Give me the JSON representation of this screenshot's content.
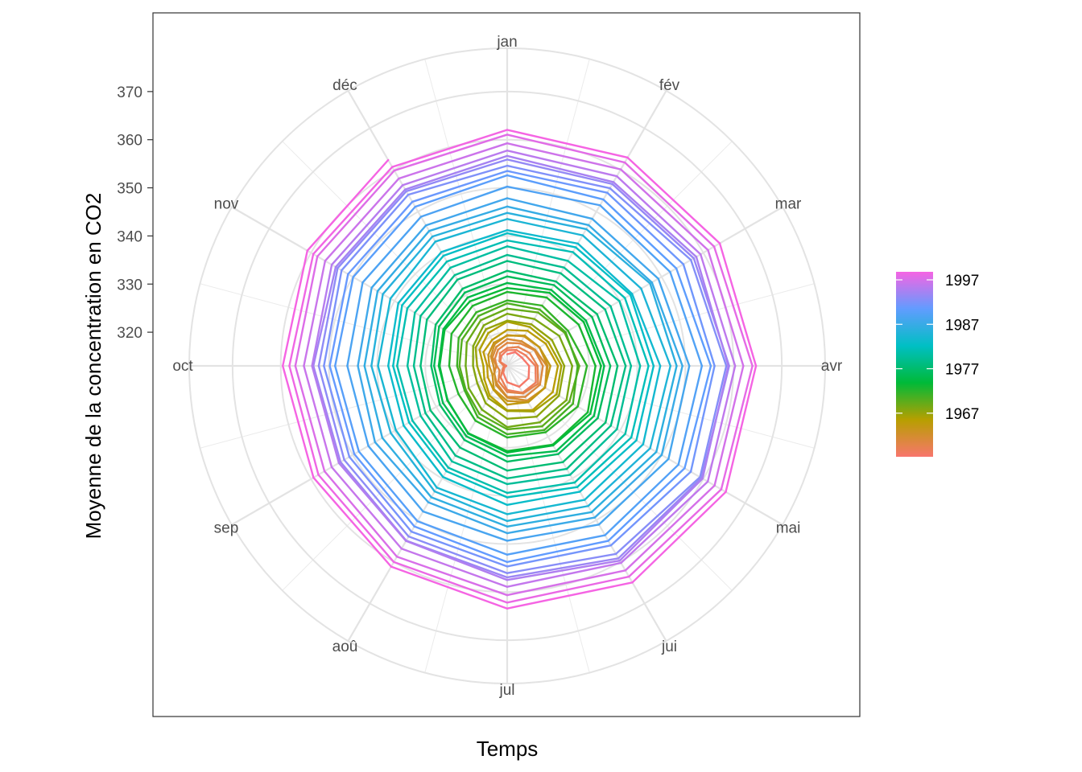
{
  "chart_data": {
    "type": "line",
    "coord": "polar",
    "xlabel": "Temps",
    "ylabel": "Moyenne de la concentration en CO2",
    "x": [
      "jan",
      "fév",
      "mar",
      "avr",
      "mai",
      "jui",
      "jul",
      "aoû",
      "sep",
      "oct",
      "nov",
      "déc"
    ],
    "y_ticks": [
      320,
      330,
      340,
      350,
      360,
      370
    ],
    "ylim": [
      313,
      379
    ],
    "grid": true,
    "series": [
      {
        "year": 1959,
        "values": [
          315.42,
          316.31,
          316.5,
          317.56,
          318.13,
          318.0,
          316.39,
          314.65,
          313.68,
          313.18,
          314.66,
          315.43
        ]
      },
      {
        "year": 1960,
        "values": [
          316.27,
          316.81,
          317.42,
          318.87,
          319.87,
          319.43,
          318.01,
          315.74,
          314.0,
          313.68,
          314.84,
          316.03
        ]
      },
      {
        "year": 1961,
        "values": [
          316.73,
          317.54,
          318.38,
          319.31,
          320.42,
          319.61,
          318.42,
          316.63,
          314.83,
          315.16,
          315.94,
          316.85
        ]
      },
      {
        "year": 1962,
        "values": [
          317.78,
          318.4,
          319.53,
          320.42,
          320.85,
          320.45,
          319.45,
          317.25,
          316.11,
          315.27,
          316.53,
          317.53
        ]
      },
      {
        "year": 1963,
        "values": [
          318.58,
          318.92,
          319.7,
          321.22,
          322.08,
          321.31,
          319.58,
          317.61,
          316.05,
          315.83,
          316.91,
          318.2
        ]
      },
      {
        "year": 1964,
        "values": [
          319.41,
          320.07,
          320.74,
          321.4,
          322.06,
          321.73,
          320.27,
          318.54,
          316.54,
          316.71,
          317.53,
          318.55
        ]
      },
      {
        "year": 1965,
        "values": [
          319.27,
          320.28,
          320.73,
          321.97,
          322.0,
          321.71,
          321.05,
          318.71,
          317.66,
          317.14,
          318.7,
          319.25
        ]
      },
      {
        "year": 1966,
        "values": [
          320.46,
          321.43,
          322.23,
          323.54,
          323.91,
          323.59,
          322.24,
          320.2,
          318.48,
          317.94,
          319.63,
          320.87
        ]
      },
      {
        "year": 1967,
        "values": [
          322.17,
          322.34,
          322.88,
          324.25,
          324.83,
          323.93,
          322.38,
          320.76,
          319.1,
          319.24,
          320.56,
          321.8
        ]
      },
      {
        "year": 1968,
        "values": [
          322.4,
          322.99,
          323.73,
          324.86,
          325.4,
          325.2,
          323.98,
          321.95,
          320.18,
          320.09,
          321.16,
          322.74
        ]
      },
      {
        "year": 1969,
        "values": [
          323.83,
          324.26,
          325.47,
          326.5,
          327.21,
          326.54,
          325.72,
          323.5,
          322.22,
          321.62,
          322.69,
          323.95
        ]
      },
      {
        "year": 1970,
        "values": [
          324.89,
          325.82,
          326.77,
          327.97,
          327.91,
          327.5,
          326.18,
          324.53,
          322.93,
          322.9,
          323.85,
          324.96
        ]
      },
      {
        "year": 1971,
        "values": [
          326.01,
          326.51,
          327.01,
          327.62,
          328.76,
          328.4,
          327.2,
          325.27,
          323.2,
          323.4,
          324.63,
          325.85
        ]
      },
      {
        "year": 1972,
        "values": [
          326.6,
          327.47,
          327.58,
          329.56,
          329.9,
          328.92,
          327.88,
          326.16,
          324.68,
          325.04,
          326.34,
          327.39
        ]
      },
      {
        "year": 1973,
        "values": [
          328.37,
          329.4,
          330.14,
          331.33,
          332.31,
          331.9,
          330.7,
          329.15,
          327.35,
          327.02,
          327.99,
          328.48
        ]
      },
      {
        "year": 1974,
        "values": [
          329.18,
          330.55,
          331.32,
          332.48,
          332.92,
          332.08,
          331.01,
          329.23,
          327.27,
          327.21,
          328.29,
          329.41
        ]
      },
      {
        "year": 1975,
        "values": [
          330.23,
          331.25,
          331.87,
          333.14,
          333.8,
          333.43,
          331.73,
          329.9,
          328.4,
          328.17,
          329.32,
          330.59
        ]
      },
      {
        "year": 1976,
        "values": [
          331.58,
          332.39,
          333.33,
          334.41,
          334.71,
          334.17,
          332.89,
          330.77,
          329.14,
          328.78,
          330.14,
          331.52
        ]
      },
      {
        "year": 1977,
        "values": [
          332.75,
          333.24,
          334.53,
          335.9,
          336.57,
          336.1,
          334.76,
          332.59,
          331.42,
          330.98,
          332.24,
          333.68
        ]
      },
      {
        "year": 1978,
        "values": [
          334.8,
          335.22,
          336.47,
          337.59,
          337.84,
          337.72,
          336.37,
          334.51,
          332.6,
          332.38,
          333.75,
          334.78
        ]
      },
      {
        "year": 1979,
        "values": [
          336.05,
          336.59,
          337.79,
          338.71,
          339.3,
          339.12,
          337.56,
          335.92,
          333.75,
          333.7,
          335.12,
          336.56
        ]
      },
      {
        "year": 1980,
        "values": [
          337.84,
          338.19,
          339.91,
          340.6,
          341.29,
          341.0,
          339.39,
          337.43,
          335.72,
          335.84,
          336.93,
          338.04
        ]
      },
      {
        "year": 1981,
        "values": [
          339.06,
          340.3,
          341.21,
          342.33,
          342.74,
          342.08,
          340.32,
          338.26,
          336.52,
          336.68,
          338.19,
          339.44
        ]
      },
      {
        "year": 1982,
        "values": [
          340.57,
          341.44,
          342.53,
          343.39,
          343.96,
          343.18,
          341.88,
          339.65,
          337.81,
          337.69,
          339.09,
          340.32
        ]
      },
      {
        "year": 1983,
        "values": [
          341.2,
          342.35,
          342.93,
          344.77,
          345.58,
          345.14,
          343.81,
          342.21,
          339.69,
          339.82,
          340.98,
          342.82
        ]
      },
      {
        "year": 1984,
        "values": [
          343.52,
          344.33,
          345.11,
          346.88,
          347.25,
          346.62,
          345.22,
          343.11,
          340.9,
          341.18,
          342.8,
          344.04
        ]
      },
      {
        "year": 1985,
        "values": [
          344.79,
          345.82,
          347.25,
          348.17,
          348.74,
          348.07,
          346.38,
          344.51,
          342.92,
          342.62,
          344.06,
          345.38
        ]
      },
      {
        "year": 1986,
        "values": [
          346.11,
          346.78,
          347.68,
          349.37,
          350.03,
          349.37,
          347.76,
          345.73,
          344.68,
          343.99,
          345.48,
          346.72
        ]
      },
      {
        "year": 1987,
        "values": [
          347.84,
          348.29,
          349.23,
          350.8,
          351.66,
          351.07,
          349.33,
          347.92,
          346.27,
          346.18,
          347.64,
          348.78
        ]
      },
      {
        "year": 1988,
        "values": [
          350.25,
          351.54,
          352.05,
          353.41,
          354.04,
          353.62,
          352.22,
          350.27,
          348.55,
          348.72,
          349.91,
          351.18
        ]
      },
      {
        "year": 1989,
        "values": [
          352.6,
          352.92,
          353.53,
          355.26,
          355.52,
          354.97,
          353.75,
          351.52,
          349.64,
          349.83,
          351.14,
          352.37
        ]
      },
      {
        "year": 1990,
        "values": [
          353.5,
          354.55,
          355.23,
          356.04,
          357.0,
          356.07,
          354.67,
          352.76,
          350.82,
          351.04,
          352.69,
          354.07
        ]
      },
      {
        "year": 1991,
        "values": [
          354.59,
          355.63,
          357.03,
          358.48,
          359.22,
          358.12,
          356.06,
          353.92,
          352.05,
          352.11,
          353.64,
          354.89
        ]
      },
      {
        "year": 1992,
        "values": [
          355.88,
          356.63,
          357.72,
          359.07,
          359.58,
          359.17,
          356.94,
          354.92,
          352.94,
          353.23,
          354.09,
          355.33
        ]
      },
      {
        "year": 1993,
        "values": [
          356.63,
          357.1,
          358.32,
          358.9,
          359.82,
          359.72,
          357.48,
          355.0,
          353.34,
          353.5,
          355.04,
          356.37
        ]
      },
      {
        "year": 1994,
        "values": [
          357.74,
          358.51,
          359.35,
          360.31,
          361.07,
          360.26,
          358.9,
          356.85,
          355.06,
          355.2,
          356.63,
          357.96
        ]
      },
      {
        "year": 1995,
        "values": [
          359.25,
          360.15,
          361.13,
          362.01,
          362.7,
          362.07,
          360.63,
          358.78,
          356.78,
          356.97,
          358.49,
          359.86
        ]
      },
      {
        "year": 1996,
        "values": [
          361.05,
          361.81,
          362.59,
          363.9,
          364.3,
          363.56,
          362.18,
          360.06,
          358.24,
          358.21,
          359.47,
          360.72
        ]
      },
      {
        "year": 1997,
        "values": [
          362.04,
          362.98,
          363.94,
          364.64,
          365.38,
          364.96,
          363.41,
          361.16,
          359.42,
          359.58,
          360.89,
          362.39
        ]
      }
    ],
    "legend": {
      "title": "",
      "position": "right",
      "ticks": [
        1967,
        1977,
        1987,
        1997
      ],
      "range": [
        1959,
        1997
      ],
      "colors": [
        "#F8766D",
        "#B79F00",
        "#00BA38",
        "#00BFC4",
        "#619CFF",
        "#F564E3"
      ]
    }
  }
}
